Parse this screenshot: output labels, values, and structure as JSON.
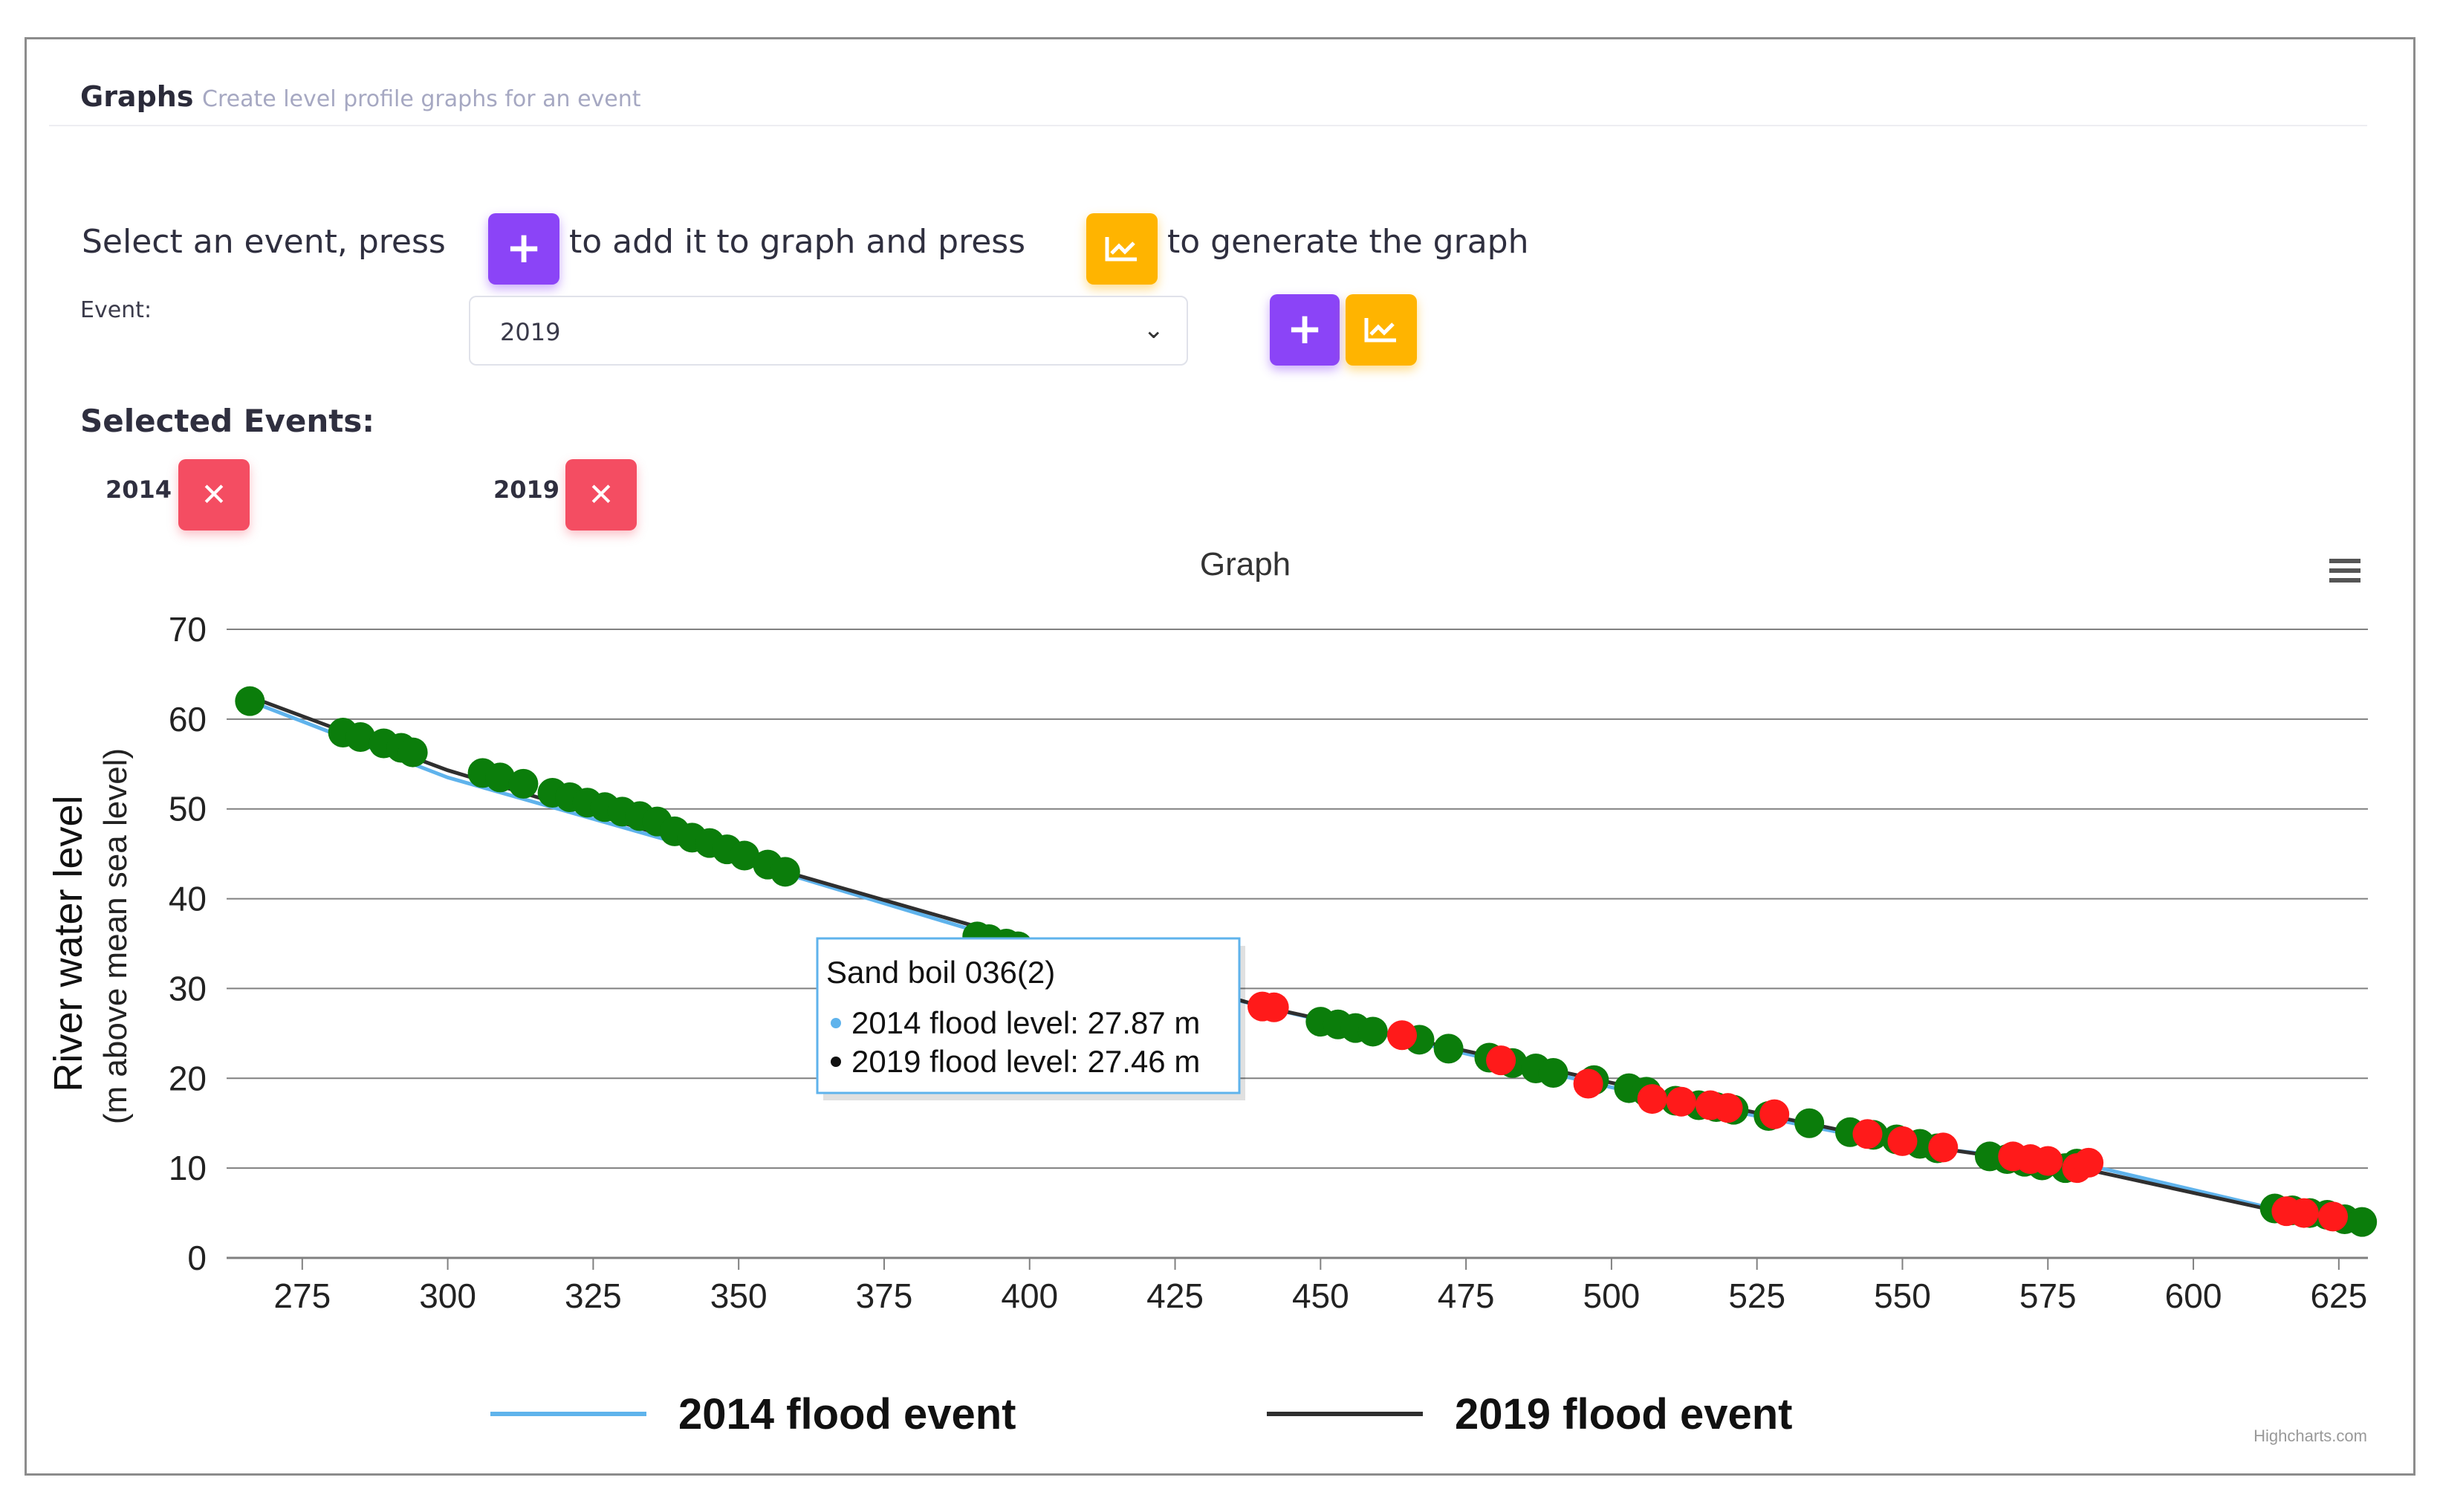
{
  "header": {
    "title": "Graphs",
    "subtitle": "Create level profile graphs for an event"
  },
  "instructions": {
    "part1": "Select an event, press",
    "part2": "to add it to graph and press",
    "part3": "to generate the graph"
  },
  "form": {
    "event_label": "Event:",
    "event_value": "2019",
    "selected_title": "Selected Events:",
    "selected_events": [
      "2014",
      "2019"
    ]
  },
  "icons": {
    "add": "plus-icon",
    "generate": "line-chart-icon",
    "remove": "close-icon",
    "menu": "hamburger-menu-icon",
    "dropdown": "chevron-down-icon"
  },
  "colors": {
    "purple": "#8b44f7",
    "orange": "#ffb400",
    "red": "#f44d62",
    "series_2014": "#5fb3ec",
    "series_2019": "#2f2f2f",
    "marker_green": "#0b7d0b",
    "marker_red": "#ff1a1a"
  },
  "tooltip": {
    "title": "Sand boil 036(2)",
    "line1": "2014 flood level: 27.87 m",
    "line2": "2019 flood level: 27.46 m"
  },
  "credit": "Highcharts.com",
  "chart_data": {
    "type": "line",
    "title": "Graph",
    "ylabel_main": "River water level",
    "ylabel_sub": "(m above mean sea level)",
    "xlabel": "",
    "xlim": [
      262,
      630
    ],
    "ylim": [
      0,
      70
    ],
    "xticks": [
      275,
      300,
      325,
      350,
      375,
      400,
      425,
      450,
      475,
      500,
      525,
      550,
      575,
      600,
      625
    ],
    "yticks": [
      0,
      10,
      20,
      30,
      40,
      50,
      60,
      70
    ],
    "grid": true,
    "legend_position": "bottom",
    "series": [
      {
        "name": "2014 flood event",
        "color": "#5fb3ec",
        "x": [
          266,
          300,
          358,
          400,
          440,
          500,
          550,
          582,
          613,
          628
        ],
        "y": [
          62.0,
          53.5,
          42.8,
          34.6,
          28.0,
          19.0,
          12.6,
          10.3,
          5.6,
          4.0
        ]
      },
      {
        "name": "2019 flood event",
        "color": "#2f2f2f",
        "x": [
          266,
          300,
          358,
          400,
          440,
          500,
          550,
          582,
          613,
          628
        ],
        "y": [
          62.5,
          54.3,
          43.0,
          35.2,
          28.0,
          19.5,
          12.8,
          9.8,
          5.4,
          4.0
        ]
      }
    ],
    "markers": {
      "green": [
        [
          266,
          62
        ],
        [
          282,
          58.5
        ],
        [
          285,
          58
        ],
        [
          289,
          57.3
        ],
        [
          292,
          56.8
        ],
        [
          294,
          56.3
        ],
        [
          306,
          54
        ],
        [
          309,
          53.5
        ],
        [
          313,
          52.8
        ],
        [
          318,
          51.8
        ],
        [
          321,
          51.3
        ],
        [
          324,
          50.7
        ],
        [
          327,
          50.2
        ],
        [
          330,
          49.7
        ],
        [
          333,
          49.2
        ],
        [
          336,
          48.6
        ],
        [
          339,
          47.5
        ],
        [
          342,
          46.8
        ],
        [
          345,
          46.2
        ],
        [
          348,
          45.5
        ],
        [
          351,
          44.8
        ],
        [
          355,
          43.8
        ],
        [
          358,
          43.0
        ],
        [
          391,
          35.8
        ],
        [
          393,
          35.5
        ],
        [
          396,
          35.0
        ],
        [
          398,
          34.7
        ],
        [
          450,
          26.3
        ],
        [
          453,
          26.0
        ],
        [
          456,
          25.6
        ],
        [
          459,
          25.2
        ],
        [
          467,
          24.3
        ],
        [
          472,
          23.3
        ],
        [
          479,
          22.3
        ],
        [
          483,
          21.7
        ],
        [
          487,
          21.1
        ],
        [
          490,
          20.6
        ],
        [
          497,
          19.8
        ],
        [
          503,
          18.9
        ],
        [
          506,
          18.5
        ],
        [
          511,
          17.5
        ],
        [
          515,
          17.0
        ],
        [
          518,
          16.8
        ],
        [
          521,
          16.5
        ],
        [
          527,
          15.8
        ],
        [
          534,
          15.0
        ],
        [
          541,
          14.0
        ],
        [
          545,
          13.7
        ],
        [
          549,
          13.2
        ],
        [
          553,
          12.7
        ],
        [
          556,
          12.2
        ],
        [
          565,
          11.3
        ],
        [
          568,
          11.0
        ],
        [
          571,
          10.7
        ],
        [
          574,
          10.3
        ],
        [
          578,
          10.0
        ],
        [
          580,
          10.5
        ],
        [
          614,
          5.5
        ],
        [
          617,
          5.3
        ],
        [
          620,
          5.0
        ],
        [
          623,
          4.8
        ],
        [
          626,
          4.3
        ],
        [
          629,
          4.0
        ]
      ],
      "red": [
        [
          440,
          28.0
        ],
        [
          442,
          27.9
        ],
        [
          464,
          24.8
        ],
        [
          481,
          22.0
        ],
        [
          496,
          19.4
        ],
        [
          507,
          17.7
        ],
        [
          512,
          17.4
        ],
        [
          517,
          17.0
        ],
        [
          520,
          16.7
        ],
        [
          528,
          16.0
        ],
        [
          544,
          13.8
        ],
        [
          550,
          13.0
        ],
        [
          557,
          12.3
        ],
        [
          569,
          11.3
        ],
        [
          572,
          11.0
        ],
        [
          575,
          10.8
        ],
        [
          580,
          10.0
        ],
        [
          582,
          10.6
        ],
        [
          616,
          5.2
        ],
        [
          619,
          5.0
        ],
        [
          624,
          4.6
        ]
      ]
    }
  }
}
